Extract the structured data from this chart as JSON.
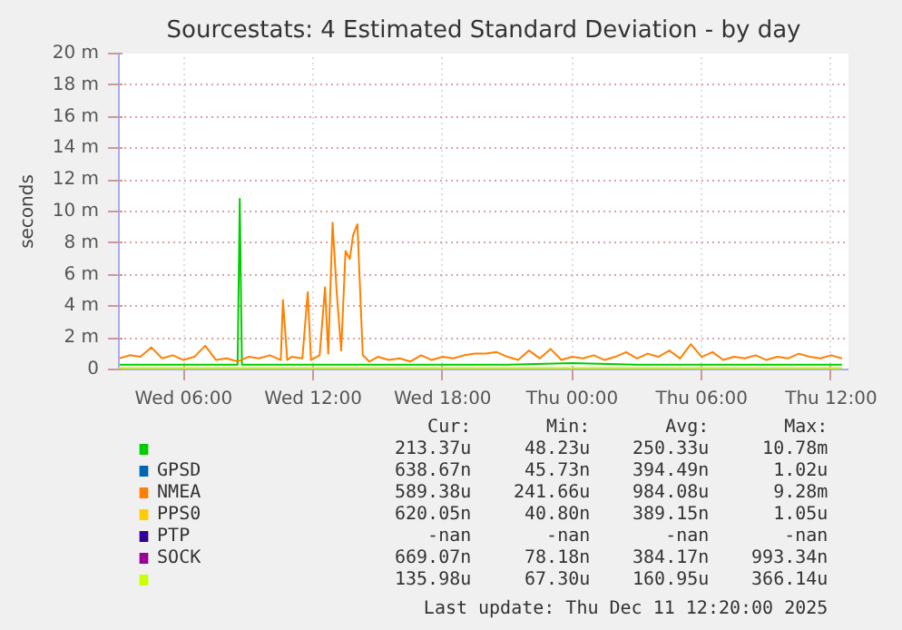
{
  "chart_data": {
    "type": "line",
    "title": "Sourcestats: 4 Estimated Standard Deviation - by day",
    "ylabel": "seconds",
    "xlim": [
      "2025-12-10T03:00",
      "2025-12-11T12:48"
    ],
    "xticks": [
      {
        "value": "2025-12-10T06:00",
        "label": "Wed 06:00"
      },
      {
        "value": "2025-12-10T12:00",
        "label": "Wed 12:00"
      },
      {
        "value": "2025-12-10T18:00",
        "label": "Wed 18:00"
      },
      {
        "value": "2025-12-11T00:00",
        "label": "Thu 00:00"
      },
      {
        "value": "2025-12-11T06:00",
        "label": "Thu 06:00"
      },
      {
        "value": "2025-12-11T12:00",
        "label": "Thu 12:00"
      }
    ],
    "ylim": [
      0,
      20
    ],
    "yticks": [
      0,
      {
        "value": 2,
        "label": "2 m"
      },
      {
        "value": 4,
        "label": "4 m"
      },
      {
        "value": 6,
        "label": "6 m"
      },
      {
        "value": 8,
        "label": "8 m"
      },
      {
        "value": 10,
        "label": "10 m"
      },
      {
        "value": 12,
        "label": "12 m"
      },
      {
        "value": 14,
        "label": "14 m"
      },
      {
        "value": 16,
        "label": "16 m"
      },
      {
        "value": 18,
        "label": "18 m"
      },
      {
        "value": 20,
        "label": "20 m"
      }
    ],
    "grid": true,
    "legend": "bottom",
    "series": [
      {
        "color": "#00cc00",
        "x": [
          "2025-12-10T03:00",
          "2025-12-10T06:00",
          "2025-12-10T08:30",
          "2025-12-10T08:36",
          "2025-12-10T08:42",
          "2025-12-10T12:00",
          "2025-12-10T15:00",
          "2025-12-10T18:00",
          "2025-12-10T21:00",
          "2025-12-11T00:00",
          "2025-12-11T03:00",
          "2025-12-11T06:00",
          "2025-12-11T09:00",
          "2025-12-11T12:30"
        ],
        "values": [
          0.3,
          0.3,
          0.3,
          10.8,
          0.3,
          0.3,
          0.3,
          0.3,
          0.3,
          0.4,
          0.3,
          0.3,
          0.3,
          0.3
        ]
      },
      {
        "name": "GPSD",
        "color": "#0066b3",
        "values": [
          null
        ]
      },
      {
        "name": "NMEA",
        "color": "#ff8000",
        "x": [
          "2025-12-10T03:00",
          "2025-12-10T03:30",
          "2025-12-10T04:00",
          "2025-12-10T04:30",
          "2025-12-10T05:00",
          "2025-12-10T05:30",
          "2025-12-10T06:00",
          "2025-12-10T06:30",
          "2025-12-10T07:00",
          "2025-12-10T07:30",
          "2025-12-10T08:00",
          "2025-12-10T08:30",
          "2025-12-10T09:00",
          "2025-12-10T09:30",
          "2025-12-10T10:00",
          "2025-12-10T10:30",
          "2025-12-10T10:36",
          "2025-12-10T10:48",
          "2025-12-10T11:00",
          "2025-12-10T11:30",
          "2025-12-10T11:45",
          "2025-12-10T11:54",
          "2025-12-10T12:18",
          "2025-12-10T12:33",
          "2025-12-10T12:42",
          "2025-12-10T12:54",
          "2025-12-10T13:06",
          "2025-12-10T13:18",
          "2025-12-10T13:30",
          "2025-12-10T13:42",
          "2025-12-10T13:51",
          "2025-12-10T14:03",
          "2025-12-10T14:18",
          "2025-12-10T14:36",
          "2025-12-10T15:00",
          "2025-12-10T15:30",
          "2025-12-10T16:00",
          "2025-12-10T16:30",
          "2025-12-10T17:00",
          "2025-12-10T17:30",
          "2025-12-10T18:00",
          "2025-12-10T18:30",
          "2025-12-10T19:00",
          "2025-12-10T19:30",
          "2025-12-10T20:00",
          "2025-12-10T20:30",
          "2025-12-10T21:00",
          "2025-12-10T21:30",
          "2025-12-10T22:00",
          "2025-12-10T22:30",
          "2025-12-10T23:00",
          "2025-12-10T23:30",
          "2025-12-11T00:00",
          "2025-12-11T00:30",
          "2025-12-11T01:00",
          "2025-12-11T01:30",
          "2025-12-11T02:00",
          "2025-12-11T02:30",
          "2025-12-11T03:00",
          "2025-12-11T03:30",
          "2025-12-11T04:00",
          "2025-12-11T04:30",
          "2025-12-11T05:00",
          "2025-12-11T05:30",
          "2025-12-11T06:00",
          "2025-12-11T06:30",
          "2025-12-11T07:00",
          "2025-12-11T07:30",
          "2025-12-11T08:00",
          "2025-12-11T08:30",
          "2025-12-11T09:00",
          "2025-12-11T09:30",
          "2025-12-11T10:00",
          "2025-12-11T10:30",
          "2025-12-11T11:00",
          "2025-12-11T11:30",
          "2025-12-11T12:00",
          "2025-12-11T12:30"
        ],
        "values": [
          0.7,
          0.9,
          0.8,
          1.4,
          0.7,
          0.9,
          0.6,
          0.8,
          1.5,
          0.6,
          0.7,
          0.5,
          0.8,
          0.7,
          0.9,
          0.6,
          4.4,
          0.6,
          0.8,
          0.7,
          4.9,
          0.6,
          0.9,
          5.2,
          1.0,
          9.3,
          4.7,
          1.2,
          7.5,
          7.0,
          8.5,
          9.2,
          0.9,
          0.5,
          0.8,
          0.6,
          0.7,
          0.5,
          0.9,
          0.6,
          0.8,
          0.7,
          0.9,
          1.0,
          1.0,
          1.1,
          0.8,
          0.6,
          1.2,
          0.7,
          1.3,
          0.6,
          0.8,
          0.7,
          0.9,
          0.6,
          0.8,
          1.1,
          0.7,
          1.0,
          0.8,
          1.2,
          0.7,
          1.6,
          0.8,
          1.1,
          0.6,
          0.8,
          0.7,
          0.9,
          0.6,
          0.8,
          0.7,
          1.0,
          0.8,
          0.7,
          0.9,
          0.7
        ]
      },
      {
        "name": "PPS0",
        "color": "#ffcc00",
        "values": [
          null
        ]
      },
      {
        "name": "PTP",
        "color": "#330099",
        "values": [
          null
        ]
      },
      {
        "name": "SOCK",
        "color": "#990099",
        "values": [
          null
        ]
      },
      {
        "color": "#ccff00",
        "x": [
          "2025-12-10T03:00",
          "2025-12-10T12:00",
          "2025-12-11T00:00",
          "2025-12-11T12:30"
        ],
        "values": [
          0.1,
          0.1,
          0.1,
          0.1
        ]
      }
    ],
    "annotations": [
      "Cur:",
      "Min:",
      "Avg:",
      "Max:",
      "213.37u",
      "48.23u",
      "250.33u",
      "10.78m",
      "638.67n",
      "45.73n",
      "394.49n",
      "1.02u",
      "589.38u",
      "241.66u",
      "984.08u",
      "9.28m",
      "620.05n",
      "40.80n",
      "389.15n",
      "1.05u",
      "-nan",
      "-nan",
      "-nan",
      "-nan",
      "669.07n",
      "78.18n",
      "384.17n",
      "993.34n",
      "135.98u",
      "67.30u",
      "160.95u",
      "366.14u",
      "Last update: Thu Dec 11 12:20:00 2025"
    ]
  }
}
